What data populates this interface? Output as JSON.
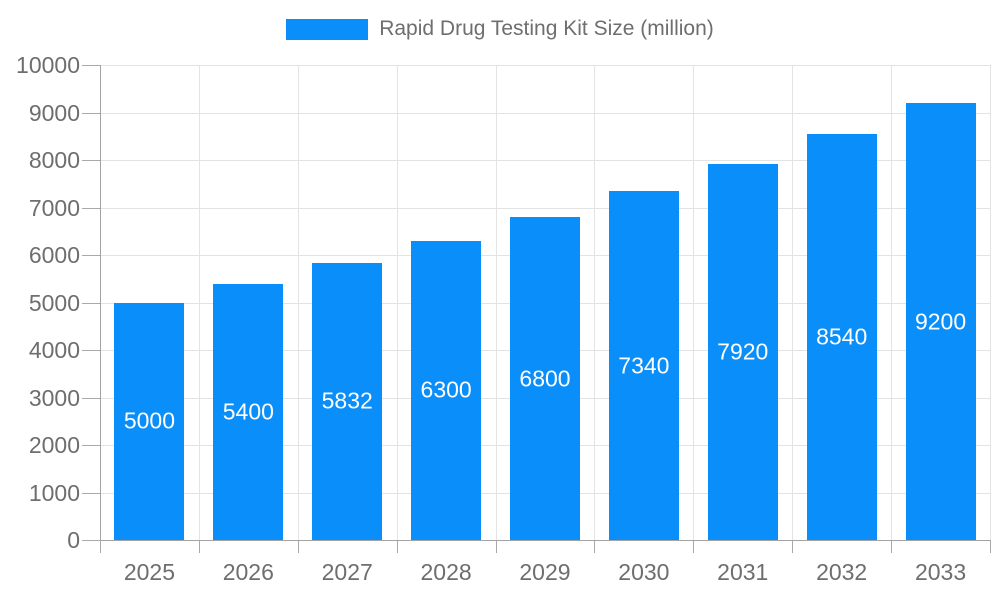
{
  "legend": {
    "label": "Rapid Drug Testing Kit Size (million)"
  },
  "colors": {
    "bar": "#0a8ef9",
    "grid": "#e3e3e3",
    "axis": "#a3a3a3",
    "tick": "#a9a9a9",
    "axis_text": "#6e6e6e",
    "bar_label_text": "#ffffff",
    "background": "#ffffff"
  },
  "chart_data": {
    "type": "bar",
    "title": "Rapid Drug Testing Kit Size (million)",
    "categories": [
      "2025",
      "2026",
      "2027",
      "2028",
      "2029",
      "2030",
      "2031",
      "2032",
      "2033"
    ],
    "values": [
      5000,
      5400,
      5832,
      6300,
      6800,
      7340,
      7920,
      8540,
      9200
    ],
    "series": [
      {
        "name": "Rapid Drug Testing Kit Size (million)",
        "values": [
          5000,
          5400,
          5832,
          6300,
          6800,
          7340,
          7920,
          8540,
          9200
        ]
      }
    ],
    "xlabel": "",
    "ylabel": "",
    "ylim": [
      0,
      10000
    ],
    "ytick_step": 1000,
    "ytick_labels": [
      "0",
      "1000",
      "2000",
      "3000",
      "4000",
      "5000",
      "6000",
      "7000",
      "8000",
      "9000",
      "10000"
    ],
    "grid": true,
    "legend_position": "top",
    "value_labels": "inside-center"
  }
}
